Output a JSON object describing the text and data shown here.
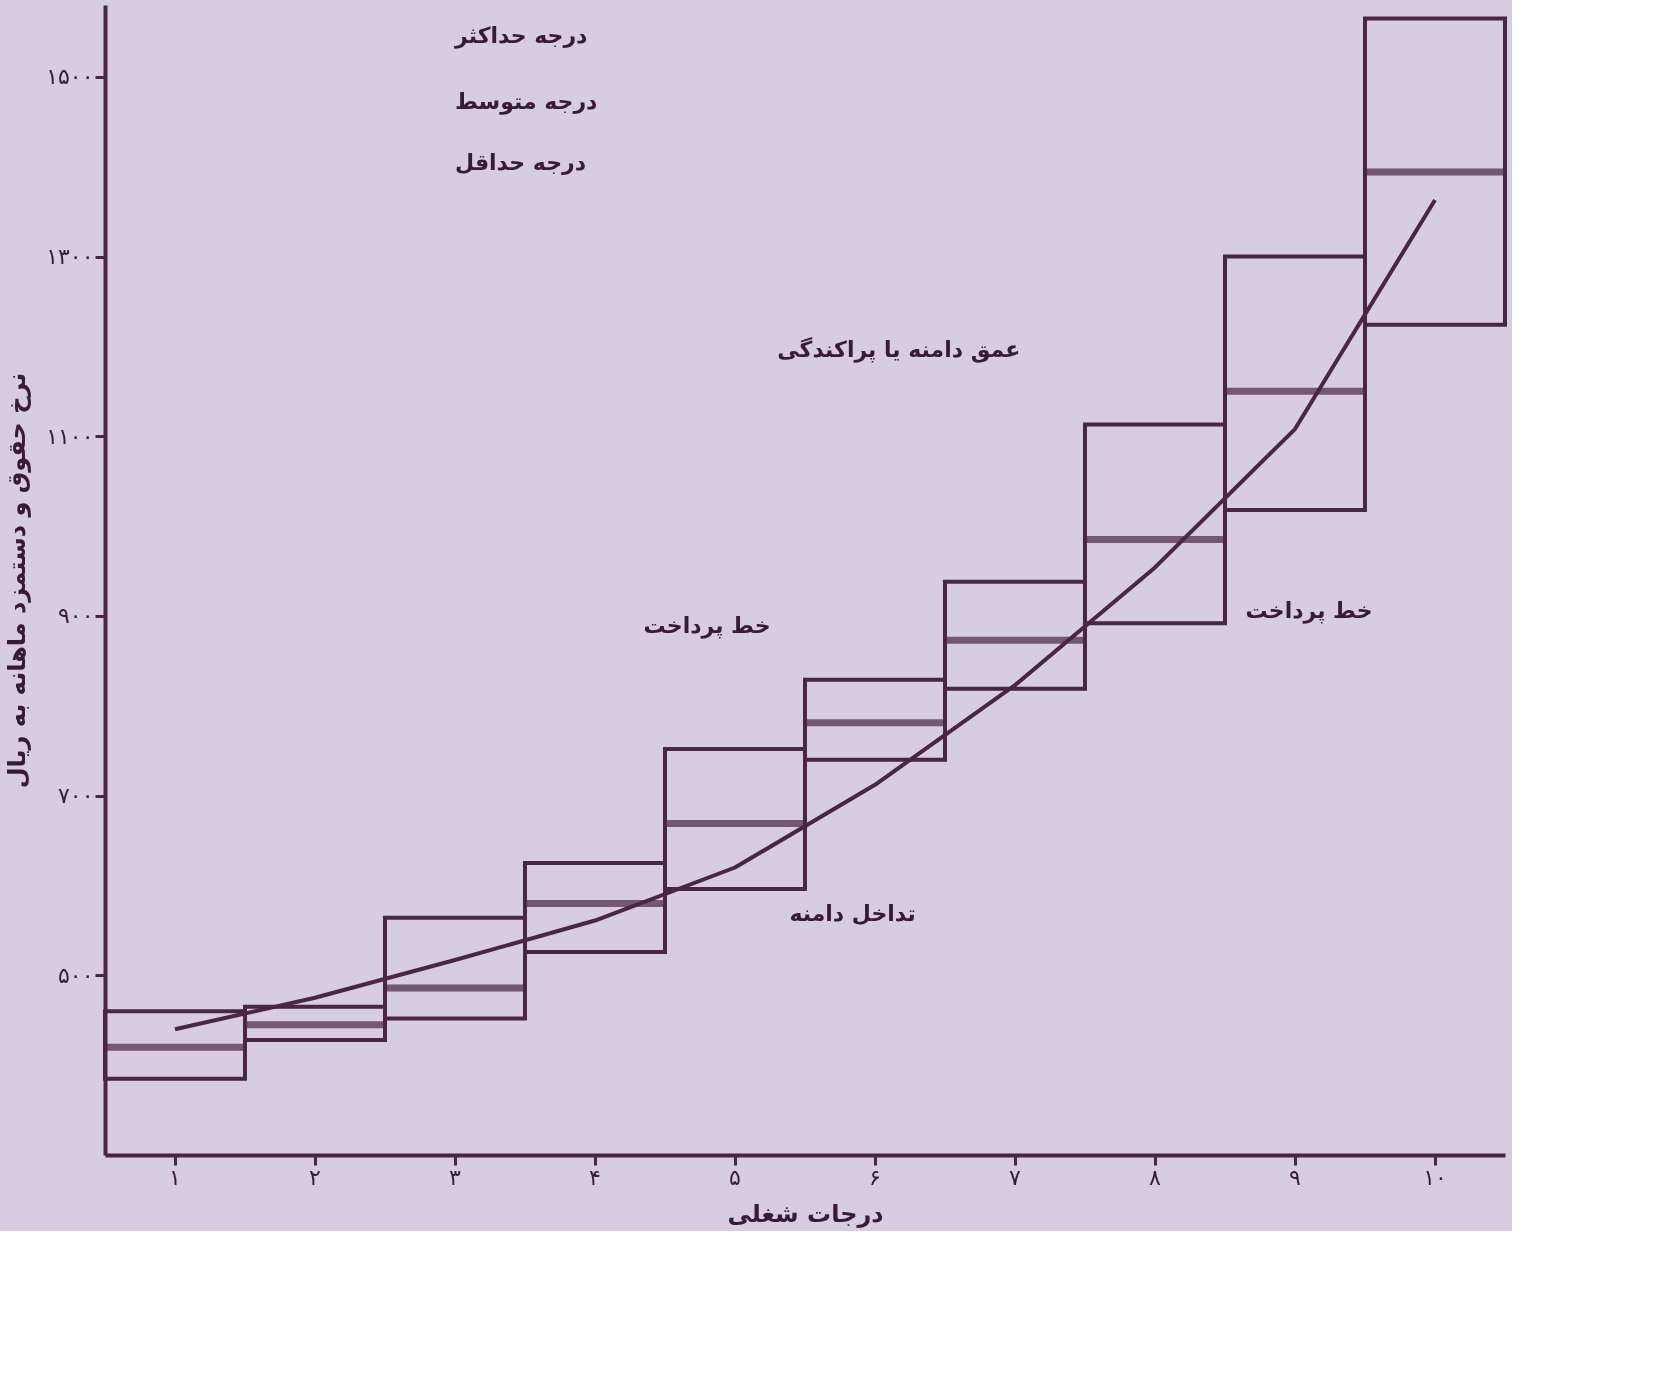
{
  "chart_data": {
    "type": "box",
    "xlabel": "درجات شغلی",
    "ylabel": "نرخ حقوق و دستمزد ماهانه به ریال",
    "categories": [
      "۱",
      "۲",
      "۳",
      "۴",
      "۵",
      "۶",
      "۷",
      "۸",
      "۹",
      "۱۰"
    ],
    "series": [
      {
        "color": "#4a2545",
        "boxes": [
          {
            "low": 385,
            "q1": 385,
            "median": 420,
            "q3": 460,
            "high": 460
          },
          {
            "low": 428,
            "q1": 428,
            "median": 445,
            "q3": 465,
            "high": 465
          },
          {
            "low": 452,
            "q1": 452,
            "median": 486,
            "q3": 564,
            "high": 564
          },
          {
            "low": 526,
            "q1": 526,
            "median": 580,
            "q3": 625,
            "high": 625
          },
          {
            "low": 596,
            "q1": 596,
            "median": 669,
            "q3": 752,
            "high": 752
          },
          {
            "low": 740,
            "q1": 740,
            "median": 781,
            "q3": 829,
            "high": 829
          },
          {
            "low": 819,
            "q1": 819,
            "median": 873,
            "q3": 938,
            "high": 938
          },
          {
            "low": 892,
            "q1": 892,
            "median": 985,
            "q3": 1113,
            "high": 1113
          },
          {
            "low": 1018,
            "q1": 1018,
            "median": 1150,
            "q3": 1300,
            "high": 1300
          },
          {
            "low": 1224,
            "q1": 1224,
            "median": 1394,
            "q3": 1565,
            "high": 1565
          }
        ]
      },
      {
        "type": "line",
        "color": "#4a2545",
        "values": [
          440,
          475,
          517,
          561,
          620,
          712,
          823,
          954,
          1108,
          1363
        ]
      }
    ],
    "ylim": [
      300,
      1580
    ],
    "yticks": [
      {
        "value": 500,
        "label": "۵۰۰"
      },
      {
        "value": 700,
        "label": "۷۰۰"
      },
      {
        "value": 900,
        "label": "۹۰۰"
      },
      {
        "value": 1100,
        "label": "۱۱۰۰"
      },
      {
        "value": 1300,
        "label": "۱۳۰۰"
      },
      {
        "value": 1500,
        "label": "۱۵۰۰"
      }
    ],
    "grid": false,
    "annotations": [
      "درجه حداکثر",
      "درجه متوسط",
      "درجه حداقل",
      "خط پرداخت",
      "خط پرداخت",
      "عمق دامنه یا پراکندگی",
      "تداخل دامنه"
    ]
  }
}
